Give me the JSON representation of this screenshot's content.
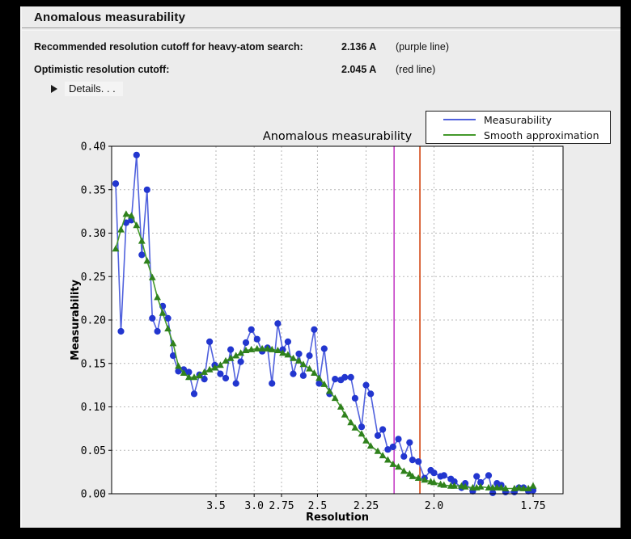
{
  "window": {
    "title": "Anomalous measurability"
  },
  "summary": {
    "rows": [
      {
        "label": "Recommended resolution cutoff for heavy-atom search:",
        "value": "2.136 A",
        "note": "(purple line)"
      },
      {
        "label": "Optimistic resolution cutoff:",
        "value": "2.045 A",
        "note": "(red line)"
      }
    ],
    "details_label": "Details. . ."
  },
  "legend": {
    "items": [
      {
        "label": "Measurability",
        "color": "#5061dd"
      },
      {
        "label": "Smooth approximation",
        "color": "#44992b"
      }
    ]
  },
  "colors": {
    "window_bg": "#ececec",
    "plot_bg": "#ffffff",
    "grid": "#b8b8b8",
    "purple_cutoff": "#c640c6",
    "red_cutoff": "#d2430e",
    "blue_line": "#5061dd",
    "blue_marker": "#2236cf",
    "green_line": "#44992b",
    "green_marker": "#2f811c"
  },
  "chart_data": {
    "type": "line",
    "title": "Anomalous measurability",
    "xlabel": "Resolution",
    "ylabel": "Measurability",
    "x_scale": "reciprocal-squared (plotted linear in 1/d^2, resolution in Angstrom decreasing to the right)",
    "grid": true,
    "legend_position": "upper right",
    "ylim": [
      0,
      0.4
    ],
    "y_ticks": [
      "0.00",
      "0.05",
      "0.10",
      "0.15",
      "0.20",
      "0.25",
      "0.30",
      "0.35",
      "0.40"
    ],
    "x_ticks": [
      {
        "label": "3.5",
        "d": 3.5
      },
      {
        "label": "3.0",
        "d": 3.0
      },
      {
        "label": "2.75",
        "d": 2.75
      },
      {
        "label": "2.5",
        "d": 2.5
      },
      {
        "label": "2.25",
        "d": 2.25
      },
      {
        "label": "2.0",
        "d": 2.0
      },
      {
        "label": "1.75",
        "d": 1.75
      }
    ],
    "cutoff_lines": [
      {
        "name": "recommended-heavy-atom-cutoff",
        "d": 2.136,
        "color": "#c640c6"
      },
      {
        "name": "optimistic-cutoff",
        "d": 2.045,
        "color": "#d2430e"
      }
    ],
    "x_resolution_angstrom": [
      15.49,
      11.04,
      9.04,
      7.84,
      7.02,
      6.41,
      5.93,
      5.55,
      5.24,
      4.97,
      4.74,
      4.54,
      4.36,
      4.2,
      4.06,
      3.93,
      3.81,
      3.71,
      3.61,
      3.52,
      3.43,
      3.35,
      3.28,
      3.21,
      3.15,
      3.09,
      3.03,
      2.97,
      2.92,
      2.87,
      2.83,
      2.78,
      2.74,
      2.7,
      2.66,
      2.62,
      2.59,
      2.55,
      2.52,
      2.49,
      2.46,
      2.43,
      2.4,
      2.37,
      2.35,
      2.32,
      2.3,
      2.27,
      2.25,
      2.23,
      2.2,
      2.18,
      2.16,
      2.14,
      2.12,
      2.1,
      2.08,
      2.07,
      2.05,
      2.03,
      2.01,
      2.0,
      1.98,
      1.97,
      1.95,
      1.94,
      1.92,
      1.91,
      1.89,
      1.88,
      1.87,
      1.85,
      1.84,
      1.83,
      1.82,
      1.81,
      1.79,
      1.78,
      1.77,
      1.76,
      1.75
    ],
    "series": [
      {
        "name": "Measurability",
        "slug": "measurability-series",
        "marker": "circle",
        "line_color": "#5061dd",
        "marker_color": "#2236cf",
        "values": [
          0.357,
          0.187,
          0.312,
          0.315,
          0.39,
          0.275,
          0.35,
          0.202,
          0.187,
          0.216,
          0.202,
          0.159,
          0.141,
          0.143,
          0.14,
          0.115,
          0.137,
          0.132,
          0.175,
          0.148,
          0.138,
          0.133,
          0.166,
          0.127,
          0.152,
          0.174,
          0.189,
          0.178,
          0.164,
          0.168,
          0.127,
          0.196,
          0.166,
          0.175,
          0.138,
          0.161,
          0.136,
          0.159,
          0.189,
          0.127,
          0.167,
          0.115,
          0.132,
          0.131,
          0.134,
          0.134,
          0.11,
          0.077,
          0.125,
          0.115,
          0.067,
          0.074,
          0.051,
          0.054,
          0.063,
          0.043,
          0.059,
          0.039,
          0.037,
          0.018,
          0.027,
          0.024,
          0.02,
          0.021,
          0.017,
          0.014,
          0.007,
          0.012,
          0.003,
          0.02,
          0.013,
          0.021,
          0.001,
          0.012,
          0.01,
          0.002,
          0.002,
          0.007,
          0.007,
          0.003,
          0.004
        ]
      },
      {
        "name": "Smooth approximation",
        "slug": "smooth-approximation-series",
        "marker": "triangle",
        "line_color": "#44992b",
        "marker_color": "#2f811c",
        "values": [
          0.282,
          0.304,
          0.322,
          0.32,
          0.309,
          0.291,
          0.268,
          0.249,
          0.226,
          0.208,
          0.19,
          0.173,
          0.147,
          0.139,
          0.134,
          0.134,
          0.136,
          0.14,
          0.143,
          0.145,
          0.148,
          0.153,
          0.156,
          0.159,
          0.162,
          0.165,
          0.166,
          0.167,
          0.167,
          0.167,
          0.166,
          0.165,
          0.162,
          0.16,
          0.156,
          0.153,
          0.149,
          0.144,
          0.139,
          0.133,
          0.126,
          0.118,
          0.11,
          0.1,
          0.091,
          0.082,
          0.076,
          0.069,
          0.061,
          0.055,
          0.049,
          0.044,
          0.039,
          0.034,
          0.031,
          0.026,
          0.023,
          0.02,
          0.018,
          0.016,
          0.014,
          0.013,
          0.011,
          0.01,
          0.009,
          0.009,
          0.009,
          0.008,
          0.007,
          0.007,
          0.008,
          0.007,
          0.007,
          0.007,
          0.007,
          0.006,
          0.006,
          0.007,
          0.006,
          0.006,
          0.009
        ]
      }
    ]
  }
}
